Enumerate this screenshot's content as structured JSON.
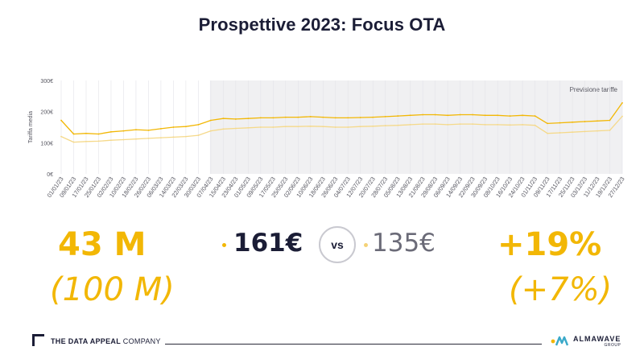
{
  "page": {
    "title": "Prospettive 2023: Focus OTA"
  },
  "stats": {
    "left_main": "43 M",
    "left_sub": "(100 M)",
    "price_a": "161€",
    "vs": "vs",
    "price_b": "135€",
    "right_main": "+19%",
    "right_sub": "(+7%)"
  },
  "footer": {
    "left_brand_bold": "THE DATA APPEAL",
    "left_brand_rest": " COMPANY",
    "right_brand": "ALMAWAVE",
    "right_brand_sub": "GROUP"
  },
  "colors": {
    "accent": "#f2b705",
    "accent_light": "#f4d277",
    "dark": "#1b1d36",
    "forecast_band": "#f0f0f2"
  },
  "chart_data": {
    "type": "line",
    "ylabel": "Tariffa media",
    "ylim": [
      0,
      300
    ],
    "yticks": [
      "0€",
      "100€",
      "200€",
      "300€"
    ],
    "forecast_label": "Previsione tariffe",
    "forecast_start_index": 12,
    "grid": true,
    "x": [
      "01/01/23",
      "09/01/23",
      "17/01/23",
      "25/01/23",
      "02/02/23",
      "10/02/23",
      "18/02/23",
      "26/02/23",
      "06/03/23",
      "14/03/23",
      "22/03/23",
      "30/03/23",
      "07/04/23",
      "15/04/23",
      "23/04/23",
      "01/05/23",
      "09/05/23",
      "17/05/23",
      "25/05/23",
      "02/06/23",
      "10/06/23",
      "18/06/23",
      "26/06/23",
      "04/07/23",
      "12/07/23",
      "20/07/23",
      "28/07/23",
      "05/08/23",
      "13/08/23",
      "21/08/23",
      "29/08/23",
      "06/09/23",
      "14/09/23",
      "22/09/23",
      "30/09/23",
      "08/10/23",
      "16/10/23",
      "24/10/23",
      "01/11/23",
      "09/11/23",
      "17/11/23",
      "25/11/23",
      "03/12/23",
      "11/12/23",
      "19/12/23",
      "27/12/23"
    ],
    "series": [
      {
        "color": "#f2b705",
        "values": [
          172,
          128,
          130,
          128,
          135,
          138,
          142,
          140,
          145,
          150,
          152,
          158,
          172,
          178,
          176,
          178,
          180,
          180,
          182,
          182,
          184,
          182,
          180,
          180,
          181,
          182,
          184,
          186,
          188,
          190,
          190,
          188,
          190,
          190,
          188,
          188,
          186,
          188,
          186,
          162,
          164,
          166,
          168,
          170,
          172,
          228
        ]
      },
      {
        "color": "#f5d98a",
        "values": [
          120,
          102,
          104,
          105,
          108,
          110,
          112,
          114,
          116,
          118,
          120,
          124,
          138,
          144,
          146,
          148,
          150,
          150,
          152,
          152,
          153,
          152,
          150,
          150,
          152,
          153,
          155,
          156,
          158,
          160,
          160,
          158,
          160,
          160,
          158,
          158,
          157,
          158,
          156,
          130,
          132,
          134,
          136,
          138,
          140,
          185
        ]
      }
    ]
  }
}
